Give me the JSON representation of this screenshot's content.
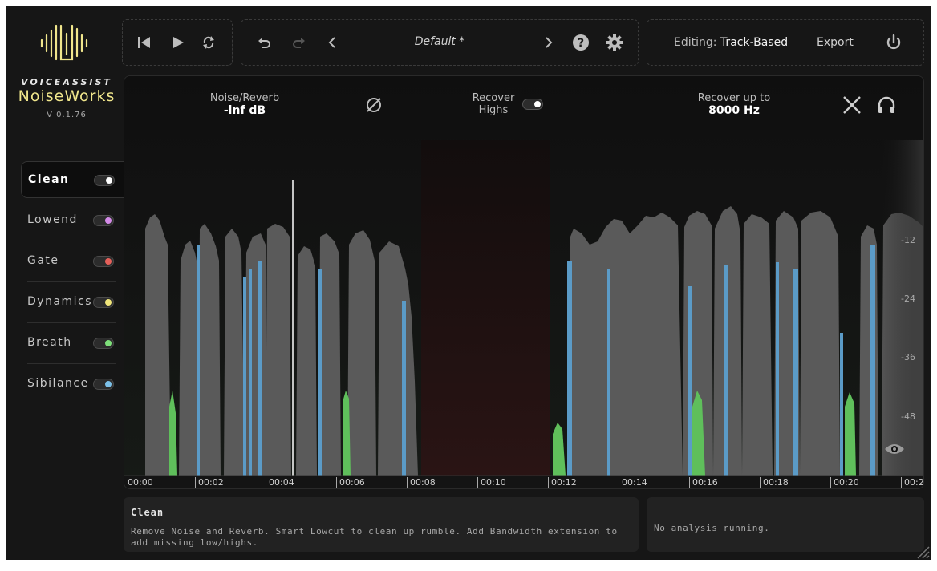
{
  "brand": {
    "top": "VOICEASSIST",
    "name": "NoiseWorks",
    "version": "V 0.1.76"
  },
  "toolbar": {
    "preset": "Default *",
    "editing_label": "Editing:",
    "editing_value": "Track-Based",
    "export_label": "Export"
  },
  "sidebar": {
    "items": [
      {
        "label": "Clean",
        "color": "#ffffff"
      },
      {
        "label": "Lowend",
        "color": "#d48be8"
      },
      {
        "label": "Gate",
        "color": "#e5605a"
      },
      {
        "label": "Dynamics",
        "color": "#f0e57a"
      },
      {
        "label": "Breath",
        "color": "#7ee07a"
      },
      {
        "label": "Sibilance",
        "color": "#7cc0e8"
      }
    ]
  },
  "params": {
    "noise_label": "Noise/Reverb",
    "noise_value": "-inf dB",
    "recover_label_1": "Recover",
    "recover_label_2": "Highs",
    "recover_up_label": "Recover up to",
    "recover_up_value": "8000 Hz"
  },
  "db_scale": [
    "-12",
    "-24",
    "-36",
    "-48"
  ],
  "timeline": [
    "00:00",
    "00:02",
    "00:04",
    "00:06",
    "00:08",
    "00:10",
    "00:12",
    "00:14",
    "00:16",
    "00:18",
    "00:20",
    "00:2"
  ],
  "info": {
    "title": "Clean",
    "description": "Remove Noise and Reverb. Smart Lowcut to clean up rumble. Add Bandwidth extension to add missing low/highs.",
    "status": "No analysis running."
  },
  "colors": {
    "accent": "#f0e68c",
    "wave_gray": "#5a5a5a",
    "sibilance": "#5b9bc7",
    "breath": "#5fbf5b"
  }
}
